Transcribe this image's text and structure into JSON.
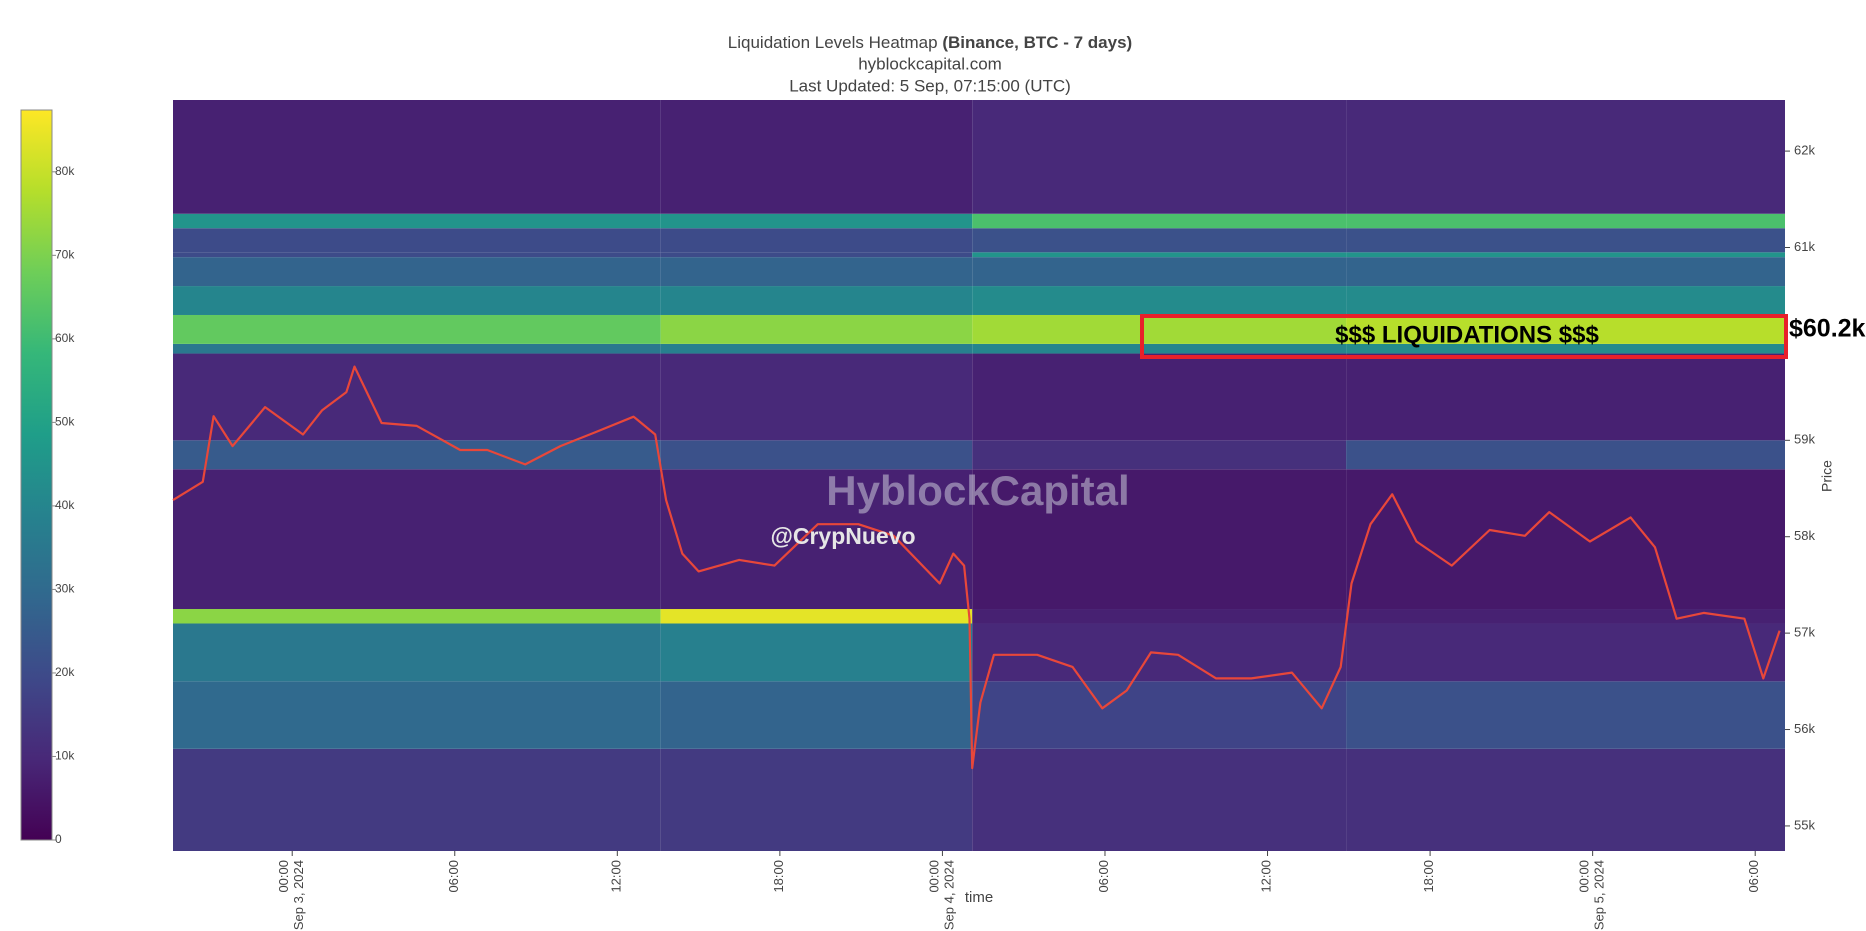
{
  "chart_data": {
    "type": "heatmap",
    "title": "Liquidation Levels Heatmap",
    "title_bold": "(Binance, BTC - 7 days)",
    "subtitle": "hyblockcapital.com",
    "updated": "Last Updated: 5 Sep, 07:15:00 (UTC)",
    "x_label": "time",
    "y_label": "Price",
    "xlim": [
      -4.4,
      55.1
    ],
    "xticks": [
      {
        "value": 0,
        "label": "00:00\nSep 3, 2024"
      },
      {
        "value": 6,
        "label": "06:00"
      },
      {
        "value": 12,
        "label": "12:00"
      },
      {
        "value": 18,
        "label": "18:00"
      },
      {
        "value": 24,
        "label": "00:00\nSep 4, 2024"
      },
      {
        "value": 30,
        "label": "06:00"
      },
      {
        "value": 36,
        "label": "12:00"
      },
      {
        "value": 42,
        "label": "18:00"
      },
      {
        "value": 48,
        "label": "00:00\nSep 5, 2024"
      },
      {
        "value": 54,
        "label": "06:00"
      }
    ],
    "ylim": [
      54740,
      62530
    ],
    "yticks": [
      {
        "value": 55000,
        "label": "55k"
      },
      {
        "value": 56000,
        "label": "56k"
      },
      {
        "value": 57000,
        "label": "57k"
      },
      {
        "value": 58000,
        "label": "58k"
      },
      {
        "value": 59000,
        "label": "59k"
      },
      {
        "value": 61000,
        "label": "61k"
      },
      {
        "value": 62000,
        "label": "62k"
      }
    ],
    "x_edges": [
      -4.4,
      13.6,
      25.1,
      38.9,
      55.1
    ],
    "y_edges": [
      54740,
      55800,
      56500,
      57100,
      57250,
      58700,
      59000,
      59900,
      60000,
      60300,
      60600,
      60900,
      60950,
      61200,
      61350,
      62530
    ],
    "z": [
      [
        15000,
        15000,
        12000,
        12000
      ],
      [
        30000,
        28000,
        18000,
        22000
      ],
      [
        35000,
        38000,
        10000,
        10000
      ],
      [
        72000,
        84000,
        8000,
        8000
      ],
      [
        8000,
        8000,
        6000,
        6000
      ],
      [
        25000,
        22000,
        12000,
        22000
      ],
      [
        10000,
        10000,
        8000,
        8000
      ],
      [
        35000,
        38000,
        40000,
        42000
      ],
      [
        66000,
        72000,
        75000,
        78000
      ],
      [
        40000,
        40000,
        42000,
        42000
      ],
      [
        28000,
        28000,
        28000,
        28000
      ],
      [
        20000,
        20000,
        45000,
        45000
      ],
      [
        20000,
        20000,
        22000,
        22000
      ],
      [
        45000,
        45000,
        62000,
        62000
      ],
      [
        8000,
        8000,
        10000,
        10000
      ]
    ],
    "zlim": [
      0,
      87400
    ],
    "zticks": [
      0,
      {
        "value": 10000,
        "label": "10k"
      },
      {
        "value": 20000,
        "label": "20k"
      },
      {
        "value": 30000,
        "label": "30k"
      },
      {
        "value": 40000,
        "label": "40k"
      },
      {
        "value": 50000,
        "label": "50k"
      },
      {
        "value": 60000,
        "label": "60k"
      },
      {
        "value": 70000,
        "label": "70k"
      },
      {
        "value": 80000,
        "label": "80k"
      }
    ],
    "colorscale": [
      "#440154",
      "#482878",
      "#3e4989",
      "#31688e",
      "#26828e",
      "#1f9e89",
      "#35b779",
      "#6ece58",
      "#b5de2b",
      "#fde725"
    ],
    "price": {
      "color": "#e8473a",
      "x": [
        -4.4,
        -3.3,
        -2.9,
        -2.2,
        -1.0,
        0.4,
        1.1,
        2.0,
        2.3,
        3.3,
        4.6,
        6.2,
        7.2,
        8.6,
        9.9,
        11.2,
        12.6,
        13.4,
        13.8,
        14.4,
        15.0,
        16.5,
        17.8,
        19.4,
        20.9,
        22.2,
        23.9,
        24.4,
        24.8,
        25.0,
        25.1,
        25.4,
        25.9,
        27.5,
        28.8,
        29.9,
        30.8,
        31.7,
        32.7,
        34.1,
        35.4,
        36.9,
        38.0,
        38.7,
        39.1,
        39.8,
        40.6,
        41.5,
        42.8,
        44.2,
        45.5,
        46.4,
        47.9,
        49.4,
        50.3,
        51.1,
        52.1,
        53.6,
        54.3,
        54.9
      ],
      "values": [
        58380,
        58570,
        59250,
        58940,
        59345,
        59060,
        59310,
        59500,
        59765,
        59180,
        59150,
        58900,
        58900,
        58750,
        58940,
        59085,
        59245,
        59060,
        58380,
        57825,
        57640,
        57760,
        57700,
        58130,
        58130,
        58010,
        57515,
        57825,
        57700,
        57150,
        55600,
        56280,
        56775,
        56775,
        56650,
        56220,
        56405,
        56800,
        56775,
        56530,
        56530,
        56590,
        56220,
        56650,
        57515,
        58130,
        58440,
        57950,
        57700,
        58070,
        58010,
        58255,
        57950,
        58200,
        57890,
        57150,
        57210,
        57150,
        56530,
        57025
      ]
    },
    "annotations": {
      "watermark": "HyblockCapital",
      "author": "@CrypNuevo",
      "box": "$$$ LIQUIDATIONS $$$",
      "level": "$60.2k"
    }
  }
}
